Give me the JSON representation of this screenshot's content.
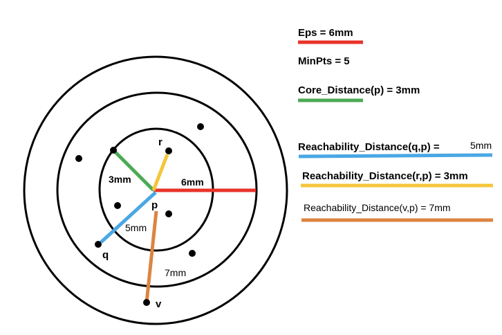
{
  "legend": {
    "eps": "Eps = 6mm",
    "minpts": "MinPts = 5",
    "core_distance": "Core_Distance(p) = 3mm",
    "reach_q_text": "Reachability_Distance(q,p) =",
    "reach_q_value": "5mm",
    "reach_r": "Reachability_Distance(r,p) = 3mm",
    "reach_v": "Reachability_Distance(v,p) = 7mm"
  },
  "labels": {
    "p": "p",
    "q": "q",
    "r": "r",
    "v": "v",
    "d_core": "3mm",
    "d_eps": "6mm",
    "d_q": "5mm",
    "d_v": "7mm"
  },
  "colors": {
    "eps": "#e8332a",
    "core": "#4caa54",
    "reach_q": "#4aa7e4",
    "reach_r": "#f5c53a",
    "reach_v": "#dc8441"
  }
}
